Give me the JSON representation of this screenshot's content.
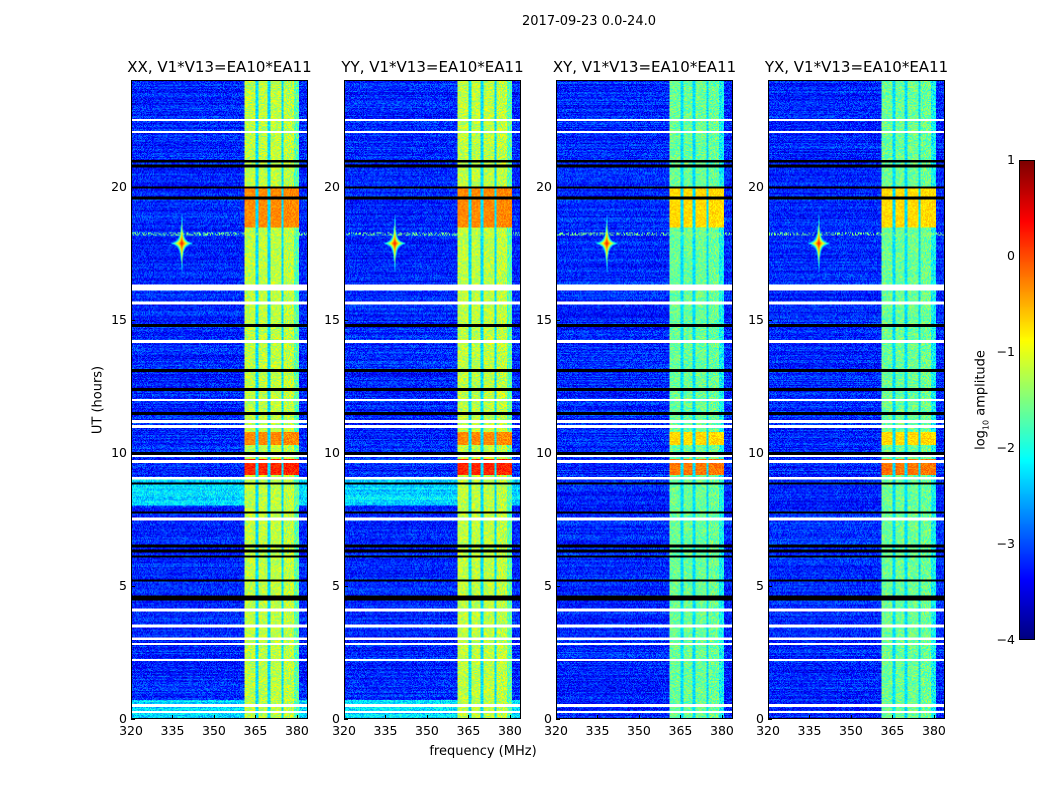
{
  "figure": {
    "suptitle": "2017-09-23 0.0-24.0",
    "ylabel": "UT (hours)",
    "xlabel": "frequency (MHz)",
    "colorbar_label_main": "log",
    "colorbar_label_sub": "10",
    "colorbar_label_rest": " amplitude"
  },
  "chart_data": {
    "type": "heatmap",
    "colormap": "jet",
    "panels": [
      {
        "title": "XX, V1*V13=EA10*EA11"
      },
      {
        "title": "YY, V1*V13=EA10*EA11"
      },
      {
        "title": "XY, V1*V13=EA10*EA11"
      },
      {
        "title": "YX, V1*V13=EA10*EA11"
      }
    ],
    "xlim": [
      320,
      384
    ],
    "ylim": [
      0,
      24
    ],
    "xticks": [
      "320",
      "335",
      "350",
      "365",
      "380"
    ],
    "xtick_values": [
      320,
      335,
      350,
      365,
      380
    ],
    "yticks": [
      "0",
      "5",
      "10",
      "15",
      "20"
    ],
    "ytick_values": [
      0,
      5,
      10,
      15,
      20
    ],
    "colorbar": {
      "range": [
        -4,
        1
      ],
      "ticks": [
        "−4",
        "−3",
        "−2",
        "−1",
        "0",
        "1"
      ],
      "tick_values": [
        -4,
        -3,
        -2,
        -1,
        0,
        1
      ]
    },
    "background_level": -3.2,
    "rfi_band_MHz": [
      361,
      381
    ],
    "rfi_band_level": -1.2,
    "strong_rfi_hours": [
      [
        9.2,
        9.8,
        0.2
      ],
      [
        10.3,
        10.8,
        -0.3
      ],
      [
        18.5,
        20.0,
        -0.3
      ]
    ],
    "point_source": {
      "freq_MHz": 338,
      "hour": 17.9,
      "level": 0.3
    },
    "flagged_white_hours": [
      22.55,
      22.1,
      16.2,
      16.3,
      15.65,
      14.2,
      12.0,
      11.2,
      11.0,
      9.9,
      9.7,
      9.05,
      7.5,
      4.1,
      3.5,
      3.0,
      2.8,
      2.2,
      0.5,
      0.25
    ],
    "flagged_black_hours": [
      21.0,
      20.8,
      20.0,
      19.6,
      14.8,
      13.1,
      12.4,
      11.5,
      10.0,
      8.85,
      7.75,
      6.5,
      6.3,
      6.1,
      5.2,
      4.6,
      4.5
    ]
  }
}
